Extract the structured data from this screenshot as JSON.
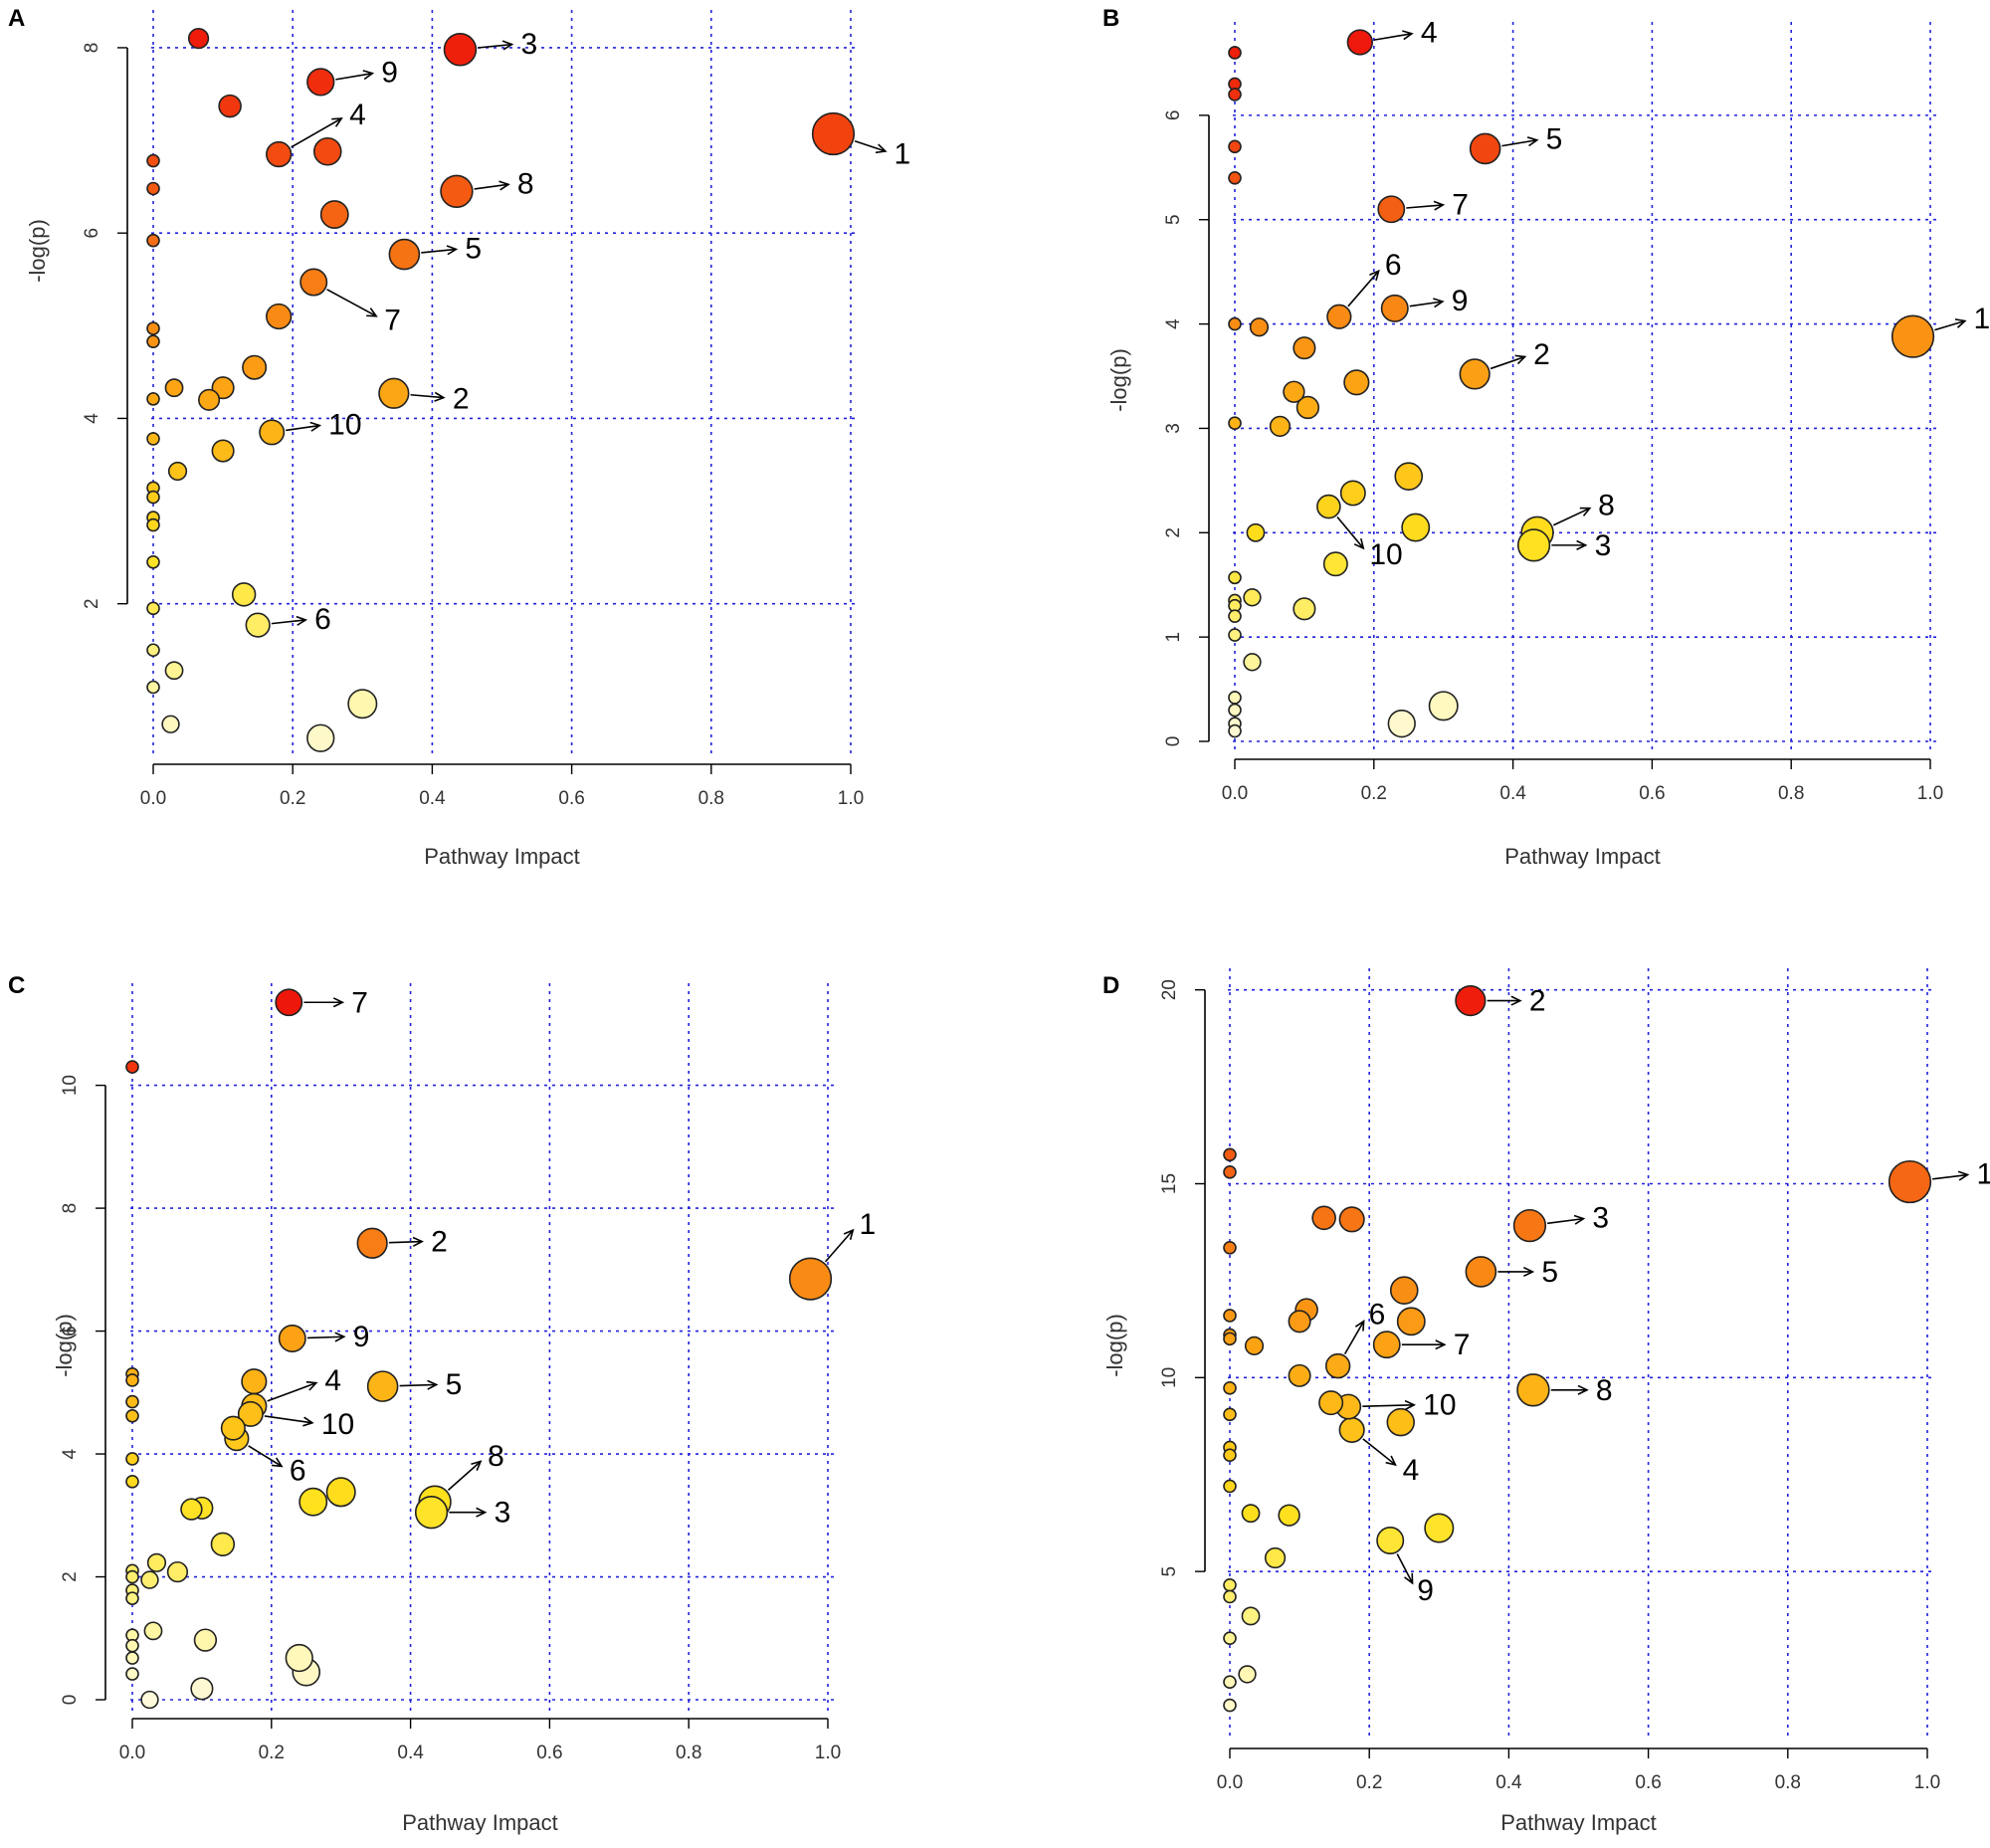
{
  "chart_data": [
    {
      "panel": "A",
      "type": "scatter",
      "xlabel": "Pathway Impact",
      "ylabel": "-log(p)",
      "xlim": [
        0,
        1
      ],
      "ylim": [
        0.3,
        8.3
      ],
      "xticks": [
        "0.0",
        "0.2",
        "0.4",
        "0.6",
        "0.8",
        "1.0"
      ],
      "yticks": [
        2,
        4,
        6,
        8
      ],
      "points": [
        {
          "x": 0.065,
          "y": 8.1
        },
        {
          "x": 0.44,
          "y": 7.98
        },
        {
          "x": 0.24,
          "y": 7.63
        },
        {
          "x": 0.11,
          "y": 7.37
        },
        {
          "x": 0.975,
          "y": 7.07
        },
        {
          "x": 0.18,
          "y": 6.85
        },
        {
          "x": 0.25,
          "y": 6.88
        },
        {
          "x": 0.0,
          "y": 6.78
        },
        {
          "x": 0.0,
          "y": 6.48
        },
        {
          "x": 0.435,
          "y": 6.45
        },
        {
          "x": 0.26,
          "y": 6.2
        },
        {
          "x": 0.0,
          "y": 5.92
        },
        {
          "x": 0.36,
          "y": 5.77
        },
        {
          "x": 0.23,
          "y": 5.47
        },
        {
          "x": 0.18,
          "y": 5.1
        },
        {
          "x": 0.0,
          "y": 4.97
        },
        {
          "x": 0.0,
          "y": 4.83
        },
        {
          "x": 0.145,
          "y": 4.55
        },
        {
          "x": 0.03,
          "y": 4.33
        },
        {
          "x": 0.1,
          "y": 4.33
        },
        {
          "x": 0.345,
          "y": 4.27
        },
        {
          "x": 0.0,
          "y": 4.21
        },
        {
          "x": 0.08,
          "y": 4.2
        },
        {
          "x": 0.17,
          "y": 3.85
        },
        {
          "x": 0.0,
          "y": 3.78
        },
        {
          "x": 0.1,
          "y": 3.65
        },
        {
          "x": 0.035,
          "y": 3.43
        },
        {
          "x": 0.0,
          "y": 3.25
        },
        {
          "x": 0.0,
          "y": 3.15
        },
        {
          "x": 0.0,
          "y": 2.93
        },
        {
          "x": 0.0,
          "y": 2.85
        },
        {
          "x": 0.0,
          "y": 2.45
        },
        {
          "x": 0.13,
          "y": 2.1
        },
        {
          "x": 0.0,
          "y": 1.95
        },
        {
          "x": 0.15,
          "y": 1.77
        },
        {
          "x": 0.0,
          "y": 1.5
        },
        {
          "x": 0.03,
          "y": 1.28
        },
        {
          "x": 0.0,
          "y": 1.1
        },
        {
          "x": 0.3,
          "y": 0.92
        },
        {
          "x": 0.025,
          "y": 0.7
        },
        {
          "x": 0.24,
          "y": 0.55
        }
      ],
      "annotations": [
        {
          "label": "1",
          "x": 0.975,
          "y": 7.07
        },
        {
          "label": "2",
          "x": 0.345,
          "y": 4.27
        },
        {
          "label": "3",
          "x": 0.44,
          "y": 7.98
        },
        {
          "label": "4",
          "x": 0.18,
          "y": 6.85
        },
        {
          "label": "5",
          "x": 0.36,
          "y": 5.77
        },
        {
          "label": "6",
          "x": 0.15,
          "y": 1.77
        },
        {
          "label": "7",
          "x": 0.23,
          "y": 5.47
        },
        {
          "label": "8",
          "x": 0.435,
          "y": 6.45
        },
        {
          "label": "9",
          "x": 0.24,
          "y": 7.63
        },
        {
          "label": "10",
          "x": 0.17,
          "y": 3.85
        }
      ]
    },
    {
      "panel": "B",
      "type": "scatter",
      "xlabel": "Pathway Impact",
      "ylabel": "-log(p)",
      "xlim": [
        0,
        1
      ],
      "ylim": [
        0,
        6.8
      ],
      "xticks": [
        "0.0",
        "0.2",
        "0.4",
        "0.6",
        "0.8",
        "1.0"
      ],
      "yticks": [
        0,
        1,
        2,
        3,
        4,
        5,
        6
      ],
      "points": [
        {
          "x": 0.18,
          "y": 6.7
        },
        {
          "x": 0.0,
          "y": 6.6
        },
        {
          "x": 0.0,
          "y": 6.3
        },
        {
          "x": 0.0,
          "y": 6.2
        },
        {
          "x": 0.0,
          "y": 5.7
        },
        {
          "x": 0.36,
          "y": 5.68
        },
        {
          "x": 0.0,
          "y": 5.4
        },
        {
          "x": 0.225,
          "y": 5.1
        },
        {
          "x": 0.23,
          "y": 4.15
        },
        {
          "x": 0.15,
          "y": 4.07
        },
        {
          "x": 0.0,
          "y": 4.0
        },
        {
          "x": 0.035,
          "y": 3.97
        },
        {
          "x": 0.975,
          "y": 3.88
        },
        {
          "x": 0.1,
          "y": 3.77
        },
        {
          "x": 0.345,
          "y": 3.52
        },
        {
          "x": 0.175,
          "y": 3.44
        },
        {
          "x": 0.085,
          "y": 3.35
        },
        {
          "x": 0.105,
          "y": 3.2
        },
        {
          "x": 0.0,
          "y": 3.05
        },
        {
          "x": 0.065,
          "y": 3.02
        },
        {
          "x": 0.25,
          "y": 2.54
        },
        {
          "x": 0.17,
          "y": 2.38
        },
        {
          "x": 0.135,
          "y": 2.25
        },
        {
          "x": 0.26,
          "y": 2.05
        },
        {
          "x": 0.435,
          "y": 2.0
        },
        {
          "x": 0.03,
          "y": 2.0
        },
        {
          "x": 0.43,
          "y": 1.88
        },
        {
          "x": 0.145,
          "y": 1.7
        },
        {
          "x": 0.0,
          "y": 1.57
        },
        {
          "x": 0.025,
          "y": 1.38
        },
        {
          "x": 0.0,
          "y": 1.35
        },
        {
          "x": 0.0,
          "y": 1.3
        },
        {
          "x": 0.1,
          "y": 1.27
        },
        {
          "x": 0.0,
          "y": 1.2
        },
        {
          "x": 0.0,
          "y": 1.02
        },
        {
          "x": 0.025,
          "y": 0.76
        },
        {
          "x": 0.0,
          "y": 0.42
        },
        {
          "x": 0.3,
          "y": 0.34
        },
        {
          "x": 0.0,
          "y": 0.3
        },
        {
          "x": 0.24,
          "y": 0.17
        },
        {
          "x": 0.0,
          "y": 0.17
        },
        {
          "x": 0.0,
          "y": 0.1
        }
      ],
      "annotations": [
        {
          "label": "1",
          "x": 0.975,
          "y": 3.88
        },
        {
          "label": "2",
          "x": 0.345,
          "y": 3.52
        },
        {
          "label": "3",
          "x": 0.43,
          "y": 1.88
        },
        {
          "label": "4",
          "x": 0.18,
          "y": 6.7
        },
        {
          "label": "5",
          "x": 0.36,
          "y": 5.68
        },
        {
          "label": "6",
          "x": 0.15,
          "y": 4.07
        },
        {
          "label": "7",
          "x": 0.225,
          "y": 5.1
        },
        {
          "label": "8",
          "x": 0.435,
          "y": 2.0
        },
        {
          "label": "9",
          "x": 0.23,
          "y": 4.15
        },
        {
          "label": "10",
          "x": 0.135,
          "y": 2.25
        }
      ]
    },
    {
      "panel": "C",
      "type": "scatter",
      "xlabel": "Pathway Impact",
      "ylabel": "-log(p)",
      "xlim": [
        0,
        1
      ],
      "ylim": [
        0,
        11.5
      ],
      "xticks": [
        "0.0",
        "0.2",
        "0.4",
        "0.6",
        "0.8",
        "1.0"
      ],
      "yticks": [
        0,
        2,
        4,
        6,
        8,
        10
      ],
      "points": [
        {
          "x": 0.225,
          "y": 11.35
        },
        {
          "x": 0.0,
          "y": 10.3
        },
        {
          "x": 0.345,
          "y": 7.43
        },
        {
          "x": 0.975,
          "y": 6.85
        },
        {
          "x": 0.23,
          "y": 5.88
        },
        {
          "x": 0.0,
          "y": 5.3
        },
        {
          "x": 0.0,
          "y": 5.2
        },
        {
          "x": 0.175,
          "y": 5.18
        },
        {
          "x": 0.36,
          "y": 5.1
        },
        {
          "x": 0.0,
          "y": 4.85
        },
        {
          "x": 0.175,
          "y": 4.78
        },
        {
          "x": 0.17,
          "y": 4.65
        },
        {
          "x": 0.0,
          "y": 4.62
        },
        {
          "x": 0.145,
          "y": 4.42
        },
        {
          "x": 0.15,
          "y": 4.25
        },
        {
          "x": 0.0,
          "y": 3.92
        },
        {
          "x": 0.0,
          "y": 3.55
        },
        {
          "x": 0.3,
          "y": 3.38
        },
        {
          "x": 0.26,
          "y": 3.22
        },
        {
          "x": 0.435,
          "y": 3.22
        },
        {
          "x": 0.1,
          "y": 3.12
        },
        {
          "x": 0.085,
          "y": 3.1
        },
        {
          "x": 0.43,
          "y": 3.05
        },
        {
          "x": 0.13,
          "y": 2.53
        },
        {
          "x": 0.035,
          "y": 2.23
        },
        {
          "x": 0.0,
          "y": 2.1
        },
        {
          "x": 0.065,
          "y": 2.08
        },
        {
          "x": 0.0,
          "y": 2.0
        },
        {
          "x": 0.025,
          "y": 1.95
        },
        {
          "x": 0.0,
          "y": 1.78
        },
        {
          "x": 0.0,
          "y": 1.65
        },
        {
          "x": 0.03,
          "y": 1.12
        },
        {
          "x": 0.0,
          "y": 1.05
        },
        {
          "x": 0.105,
          "y": 0.97
        },
        {
          "x": 0.0,
          "y": 0.88
        },
        {
          "x": 0.0,
          "y": 0.68
        },
        {
          "x": 0.24,
          "y": 0.68
        },
        {
          "x": 0.25,
          "y": 0.45
        },
        {
          "x": 0.0,
          "y": 0.42
        },
        {
          "x": 0.1,
          "y": 0.18
        },
        {
          "x": 0.025,
          "y": 0.0
        }
      ],
      "annotations": [
        {
          "label": "1",
          "x": 0.975,
          "y": 6.85
        },
        {
          "label": "2",
          "x": 0.345,
          "y": 7.43
        },
        {
          "label": "3",
          "x": 0.43,
          "y": 3.05
        },
        {
          "label": "4",
          "x": 0.175,
          "y": 4.78
        },
        {
          "label": "5",
          "x": 0.36,
          "y": 5.1
        },
        {
          "label": "6",
          "x": 0.15,
          "y": 4.25
        },
        {
          "label": "7",
          "x": 0.225,
          "y": 11.35
        },
        {
          "label": "8",
          "x": 0.435,
          "y": 3.22
        },
        {
          "label": "9",
          "x": 0.23,
          "y": 5.88
        },
        {
          "label": "10",
          "x": 0.17,
          "y": 4.65
        }
      ]
    },
    {
      "panel": "D",
      "type": "scatter",
      "xlabel": "Pathway Impact",
      "ylabel": "-log(p)",
      "xlim": [
        0,
        1
      ],
      "ylim": [
        1,
        20.3
      ],
      "xticks": [
        "0.0",
        "0.2",
        "0.4",
        "0.6",
        "0.8",
        "1.0"
      ],
      "yticks": [
        5,
        10,
        15,
        20
      ],
      "points": [
        {
          "x": 0.345,
          "y": 19.72
        },
        {
          "x": 0.0,
          "y": 15.75
        },
        {
          "x": 0.0,
          "y": 15.3
        },
        {
          "x": 0.975,
          "y": 15.05
        },
        {
          "x": 0.135,
          "y": 14.12
        },
        {
          "x": 0.175,
          "y": 14.08
        },
        {
          "x": 0.43,
          "y": 13.92
        },
        {
          "x": 0.0,
          "y": 13.35
        },
        {
          "x": 0.36,
          "y": 12.73
        },
        {
          "x": 0.25,
          "y": 12.25
        },
        {
          "x": 0.11,
          "y": 11.75
        },
        {
          "x": 0.0,
          "y": 11.6
        },
        {
          "x": 0.26,
          "y": 11.45
        },
        {
          "x": 0.1,
          "y": 11.45
        },
        {
          "x": 0.0,
          "y": 11.1
        },
        {
          "x": 0.0,
          "y": 11.0
        },
        {
          "x": 0.225,
          "y": 10.85
        },
        {
          "x": 0.035,
          "y": 10.82
        },
        {
          "x": 0.155,
          "y": 10.3
        },
        {
          "x": 0.1,
          "y": 10.05
        },
        {
          "x": 0.0,
          "y": 9.73
        },
        {
          "x": 0.435,
          "y": 9.68
        },
        {
          "x": 0.145,
          "y": 9.35
        },
        {
          "x": 0.17,
          "y": 9.25
        },
        {
          "x": 0.0,
          "y": 9.05
        },
        {
          "x": 0.245,
          "y": 8.85
        },
        {
          "x": 0.175,
          "y": 8.65
        },
        {
          "x": 0.0,
          "y": 8.2
        },
        {
          "x": 0.0,
          "y": 8.0
        },
        {
          "x": 0.0,
          "y": 7.2
        },
        {
          "x": 0.03,
          "y": 6.5
        },
        {
          "x": 0.085,
          "y": 6.45
        },
        {
          "x": 0.3,
          "y": 6.12
        },
        {
          "x": 0.23,
          "y": 5.8
        },
        {
          "x": 0.065,
          "y": 5.35
        },
        {
          "x": 0.0,
          "y": 4.65
        },
        {
          "x": 0.0,
          "y": 4.35
        },
        {
          "x": 0.03,
          "y": 3.85
        },
        {
          "x": 0.0,
          "y": 3.28
        },
        {
          "x": 0.025,
          "y": 2.35
        },
        {
          "x": 0.0,
          "y": 2.15
        },
        {
          "x": 0.0,
          "y": 1.55
        }
      ],
      "annotations": [
        {
          "label": "1",
          "x": 0.975,
          "y": 15.05
        },
        {
          "label": "2",
          "x": 0.345,
          "y": 19.72
        },
        {
          "label": "3",
          "x": 0.43,
          "y": 13.92
        },
        {
          "label": "4",
          "x": 0.175,
          "y": 8.65
        },
        {
          "label": "5",
          "x": 0.36,
          "y": 12.73
        },
        {
          "label": "6",
          "x": 0.155,
          "y": 10.3
        },
        {
          "label": "7",
          "x": 0.225,
          "y": 10.85
        },
        {
          "label": "8",
          "x": 0.435,
          "y": 9.68
        },
        {
          "label": "9",
          "x": 0.23,
          "y": 5.8
        },
        {
          "label": "10",
          "x": 0.17,
          "y": 9.25
        }
      ]
    }
  ]
}
